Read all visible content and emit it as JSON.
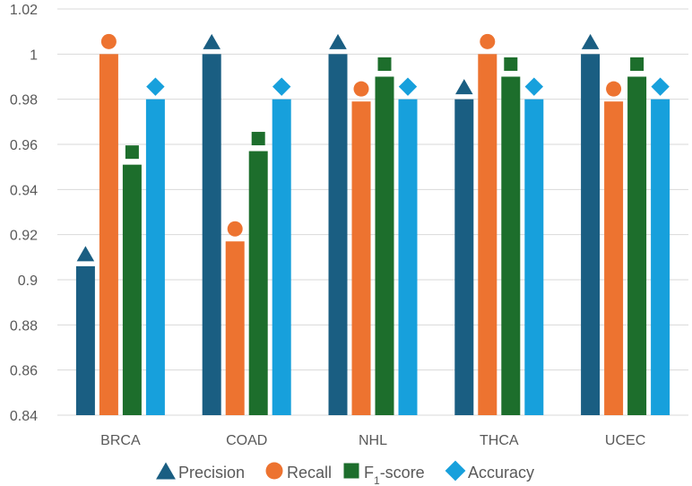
{
  "chart_data": {
    "type": "bar",
    "title": "",
    "xlabel": "",
    "ylabel": "",
    "ylim": [
      0.84,
      1.02
    ],
    "yticks": [
      "0.84",
      "0.86",
      "0.88",
      "0.9",
      "0.92",
      "0.94",
      "0.96",
      "0.98",
      "1",
      "1.02"
    ],
    "grid": true,
    "legend_position": "bottom",
    "categories": [
      "BRCA",
      "COAD",
      "NHL",
      "THCA",
      "UCEC"
    ],
    "series": [
      {
        "name": "Precision",
        "legend_label": "Precision",
        "marker": "triangle",
        "color": "#1a5e82",
        "values": [
          0.906,
          1.0,
          1.0,
          0.98,
          1.0
        ]
      },
      {
        "name": "Recall",
        "legend_label": "Recall",
        "marker": "circle",
        "color": "#ed7330",
        "values": [
          1.0,
          0.917,
          0.979,
          1.0,
          0.979
        ]
      },
      {
        "name": "F1-score",
        "legend_label": "F",
        "legend_sub": "1",
        "legend_suffix": "-score",
        "marker": "square",
        "color": "#1d6e2c",
        "values": [
          0.951,
          0.957,
          0.99,
          0.99,
          0.99
        ]
      },
      {
        "name": "Accuracy",
        "legend_label": "Accuracy",
        "marker": "diamond",
        "color": "#17a0dc",
        "values": [
          0.98,
          0.98,
          0.98,
          0.98,
          0.98
        ]
      }
    ]
  }
}
